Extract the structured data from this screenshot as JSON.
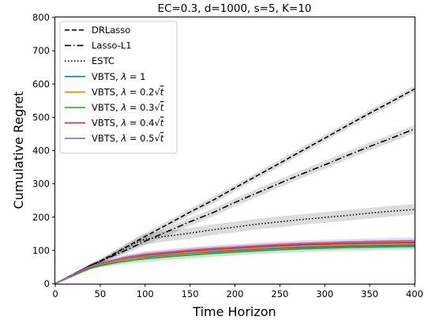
{
  "chart_data": {
    "type": "line",
    "title": "EC=0.3, d=1000, s=5, K=10",
    "xlabel": "Time Horizon",
    "ylabel": "Cumulative Regret",
    "xlim": [
      0,
      400
    ],
    "ylim": [
      0,
      800
    ],
    "xticks": [
      0,
      50,
      100,
      150,
      200,
      250,
      300,
      350,
      400
    ],
    "yticks": [
      0,
      100,
      200,
      300,
      400,
      500,
      600,
      700,
      800
    ],
    "x": [
      0,
      10,
      20,
      30,
      40,
      50,
      60,
      70,
      80,
      90,
      100,
      125,
      150,
      175,
      200,
      225,
      250,
      275,
      300,
      325,
      350,
      375,
      400
    ],
    "legend_position": "upper left",
    "grid": false,
    "series": [
      {
        "name": "DRLasso",
        "color": "#000000",
        "dash": "dashed",
        "y": [
          0,
          14,
          28,
          42,
          56,
          68,
          82,
          97,
          112,
          127,
          142,
          178,
          215,
          250,
          288,
          325,
          362,
          400,
          437,
          475,
          512,
          548,
          585
        ],
        "band": 10
      },
      {
        "name": "Lasso-L1",
        "color": "#000000",
        "dash": "dashdot",
        "y": [
          0,
          14,
          28,
          42,
          56,
          66,
          79,
          90,
          102,
          115,
          128,
          157,
          186,
          213,
          244,
          273,
          302,
          330,
          357,
          385,
          412,
          438,
          465
        ],
        "band": 12
      },
      {
        "name": "ESTC",
        "color": "#000000",
        "dash": "dotted",
        "y": [
          0,
          14,
          28,
          42,
          56,
          66,
          80,
          95,
          110,
          124,
          134,
          143,
          152,
          162,
          170,
          179,
          186,
          193,
          199,
          205,
          212,
          218,
          223
        ],
        "band": 16
      },
      {
        "name": "VBTS, λ = 1",
        "label_parts": [
          "VBTS, ",
          "λ",
          " = 1",
          ""
        ],
        "color": "#1f77b4",
        "dash": "solid",
        "y": [
          0,
          13,
          26,
          39,
          50,
          57,
          63,
          69,
          74,
          78,
          81,
          87,
          92,
          96,
          100,
          104,
          107,
          109,
          111,
          113,
          114,
          115,
          116
        ],
        "band": 8
      },
      {
        "name": "VBTS, λ = 0.2√t",
        "label_parts": [
          "VBTS, ",
          "λ",
          " = 0.2",
          "t"
        ],
        "color": "#ff7f0e",
        "dash": "solid",
        "y": [
          0,
          13,
          26,
          39,
          51,
          58,
          64,
          70,
          75,
          79,
          83,
          89,
          94,
          99,
          103,
          107,
          110,
          113,
          115,
          117,
          118,
          119,
          120
        ],
        "band": 8
      },
      {
        "name": "VBTS, λ = 0.3√t",
        "label_parts": [
          "VBTS, ",
          "λ",
          " = 0.3",
          "t"
        ],
        "color": "#2ca02c",
        "dash": "solid",
        "y": [
          0,
          12,
          24,
          36,
          47,
          54,
          59,
          64,
          68,
          72,
          75,
          81,
          86,
          91,
          95,
          99,
          102,
          105,
          107,
          109,
          110,
          111,
          112
        ],
        "band": 10
      },
      {
        "name": "VBTS, λ = 0.4√t",
        "label_parts": [
          "VBTS, ",
          "λ",
          " = 0.4",
          "t"
        ],
        "color": "#d62728",
        "dash": "solid",
        "y": [
          0,
          13,
          26,
          40,
          52,
          60,
          67,
          73,
          78,
          82,
          86,
          92,
          98,
          103,
          107,
          111,
          114,
          117,
          119,
          121,
          122,
          123,
          124
        ],
        "band": 8
      },
      {
        "name": "VBTS, λ = 0.5√t",
        "label_parts": [
          "VBTS, ",
          "λ",
          " = 0.5",
          "t"
        ],
        "color": "#9467bd",
        "dash": "solid",
        "y": [
          0,
          13,
          27,
          41,
          53,
          61,
          68,
          74,
          80,
          84,
          88,
          95,
          101,
          106,
          110,
          114,
          118,
          121,
          123,
          125,
          127,
          128,
          129
        ],
        "band": 9
      }
    ]
  }
}
